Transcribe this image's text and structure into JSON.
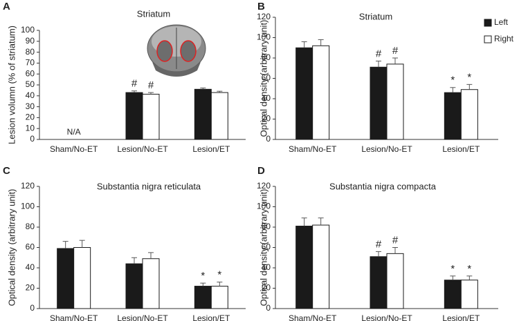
{
  "chart_data": [
    {
      "type": "bar",
      "panel": "A",
      "title": "Striatum",
      "y_label": "Lesion volumn (% of striatum)",
      "categories": [
        "Sham/No-ET",
        "Lesion/No-ET",
        "Lesion/ET"
      ],
      "series": [
        {
          "color": "#1a1a1a",
          "values": [
            null,
            43,
            46
          ],
          "errors": [
            null,
            1.5,
            1.2
          ],
          "markers": [
            null,
            "#",
            null
          ]
        },
        {
          "color": "#ffffff",
          "values": [
            null,
            41.5,
            43
          ],
          "errors": [
            null,
            1.5,
            1.2
          ],
          "markers": [
            null,
            "#",
            null
          ]
        }
      ],
      "annotations": [
        {
          "text": "N/A",
          "x": "Sham/No-ET"
        }
      ],
      "ylim": [
        0,
        100
      ],
      "yticks": [
        0,
        10,
        20,
        30,
        40,
        50,
        60,
        70,
        80,
        90,
        100
      ]
    },
    {
      "type": "bar",
      "panel": "B",
      "title": "Striatum",
      "y_label": "Optical density (arbitrary unit)",
      "categories": [
        "Sham/No-ET",
        "Lesion/No-ET",
        "Lesion/ET"
      ],
      "series": [
        {
          "name": "Left",
          "color": "#1a1a1a",
          "values": [
            90,
            71,
            46
          ],
          "errors": [
            6,
            6,
            5
          ],
          "markers": [
            null,
            "#",
            "*"
          ]
        },
        {
          "name": "Right",
          "color": "#ffffff",
          "values": [
            92,
            74,
            49
          ],
          "errors": [
            6,
            6,
            5
          ],
          "markers": [
            null,
            "#",
            "*"
          ]
        }
      ],
      "legend": true,
      "ylim": [
        0,
        120
      ],
      "yticks": [
        0,
        20,
        40,
        60,
        80,
        100,
        120
      ]
    },
    {
      "type": "bar",
      "panel": "C",
      "title": "Substantia nigra reticulata",
      "y_label": "Optical density (arbitrary unit)",
      "categories": [
        "Sham/No-ET",
        "Lesion/No-ET",
        "Lesion/ET"
      ],
      "series": [
        {
          "color": "#1a1a1a",
          "values": [
            59,
            44,
            22
          ],
          "errors": [
            7,
            6,
            3
          ],
          "markers": [
            null,
            null,
            "*"
          ]
        },
        {
          "color": "#ffffff",
          "values": [
            60,
            49,
            22
          ],
          "errors": [
            7,
            6,
            4
          ],
          "markers": [
            null,
            null,
            "*"
          ]
        }
      ],
      "ylim": [
        0,
        120
      ],
      "yticks": [
        0,
        20,
        40,
        60,
        80,
        100,
        120
      ]
    },
    {
      "type": "bar",
      "panel": "D",
      "title": "Substantia nigra compacta",
      "y_label": "Optical density (arbitrary unit)",
      "categories": [
        "Sham/No-ET",
        "Lesion/No-ET",
        "Lesion/ET"
      ],
      "series": [
        {
          "color": "#1a1a1a",
          "values": [
            81,
            51,
            28
          ],
          "errors": [
            8,
            5,
            4
          ],
          "markers": [
            null,
            "#",
            "*"
          ]
        },
        {
          "color": "#ffffff",
          "values": [
            82,
            54,
            28
          ],
          "errors": [
            7,
            6,
            4
          ],
          "markers": [
            null,
            "#",
            "*"
          ]
        }
      ],
      "ylim": [
        0,
        120
      ],
      "yticks": [
        0,
        20,
        40,
        60,
        80,
        100,
        120
      ]
    }
  ]
}
